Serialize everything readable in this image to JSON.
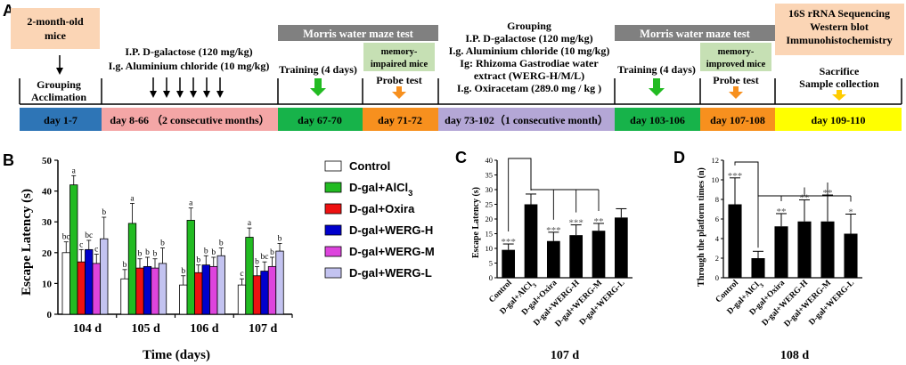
{
  "colors": {
    "orange_box": "#fbd5b5",
    "gray_bar": "#808080",
    "green_box": "#c6e0b4",
    "day_blue": "#2e75b6",
    "day_pink": "#f4a6a6",
    "day_green": "#17b34a",
    "day_orange": "#f7901e",
    "day_purple": "#b4a7d6",
    "day_yellow": "#ffff00",
    "s_control": "#ffffff",
    "s_alcl3": "#22bb22",
    "s_oxira": "#ee1111",
    "s_wergh": "#0000cc",
    "s_wergm": "#dd44dd",
    "s_wergl": "#c3c3f0",
    "arrow_green": "#22bb22",
    "arrow_orange": "#f7901e",
    "arrow_yellow": "#ffcc00"
  },
  "panel_a": {
    "letter": "A",
    "box_mice": {
      "l1": "2-month-old",
      "l2": "mice"
    },
    "grouping1": {
      "l1": "Grouping",
      "l2": "Acclimation"
    },
    "ip1": {
      "l1": "I.P. D-galactose (120 mg/kg)",
      "l2": "I.g. Aluminium chloride (10 mg/kg)"
    },
    "mwm1": "Morris water maze test",
    "training1": "Training (4 days)",
    "mem_impaired": {
      "l1": "memory-",
      "l2": "impaired mice"
    },
    "probe1": "Probe test",
    "grouping2": {
      "l1": "Grouping",
      "l2": "I.P. D-galactose (120 mg/kg)",
      "l3": "I.g. Aluminium chloride (10 mg/kg)",
      "l4": "Ig: Rhizoma Gastrodiae water",
      "l5": "extract (WERG-H/M/L)",
      "l6": "I.g. Oxiracetam (289.0 mg / kg )"
    },
    "mwm2": "Morris water maze test",
    "training2": "Training (4 days)",
    "mem_improved": {
      "l1": "memory-",
      "l2": "improved mice"
    },
    "probe2": "Probe test",
    "final": {
      "l1": "16S rRNA Sequencing",
      "l2": "Western blot",
      "l3": "Immunohistochemistry"
    },
    "sacrifice": {
      "l1": "Sacrifice",
      "l2": "Sample collection"
    },
    "days": [
      "day 1-7",
      "day 8-66 （2 consecutive months）",
      "day 67-70",
      "day 71-72",
      "day 73-102（1 consecutive month）",
      "day 103-106",
      "day 107-108",
      "day 109-110"
    ]
  },
  "chart_data": [
    {
      "panel": "B",
      "type": "bar",
      "ylabel": "Escape Latency (s)",
      "xlabel": "Time (days)",
      "ylim": [
        0,
        50
      ],
      "yticks": [
        0,
        10,
        20,
        30,
        40,
        50
      ],
      "categories": [
        "104 d",
        "105 d",
        "106 d",
        "107 d"
      ],
      "series": [
        {
          "name": "Control",
          "values": [
            20,
            11.5,
            9.5,
            9.5
          ],
          "errors": [
            3.5,
            3,
            3,
            2
          ],
          "letters": [
            "bc",
            "b",
            "b",
            "c"
          ]
        },
        {
          "name": "D-gal+AlCl3",
          "values": [
            42,
            29.5,
            30.5,
            25
          ],
          "errors": [
            3,
            6.5,
            4,
            3
          ],
          "letters": [
            "a",
            "a",
            "a",
            "a"
          ]
        },
        {
          "name": "D-gal+Oxira",
          "values": [
            17,
            15,
            13.5,
            12.5
          ],
          "errors": [
            4,
            3,
            2.5,
            3
          ],
          "letters": [
            "c",
            "b",
            "b",
            "b"
          ]
        },
        {
          "name": "D-gal+WERG-H",
          "values": [
            21,
            15.5,
            16,
            14
          ],
          "errors": [
            3,
            3,
            3,
            3
          ],
          "letters": [
            "bc",
            "b",
            "b",
            "bc"
          ]
        },
        {
          "name": "D-gal+WERG-M",
          "values": [
            16.5,
            15,
            15.5,
            15.5
          ],
          "errors": [
            3,
            3,
            3,
            3
          ],
          "letters": [
            "c",
            "b",
            "b",
            "b"
          ]
        },
        {
          "name": "D-gal+WERG-L",
          "values": [
            24.5,
            16.5,
            19,
            20.5
          ],
          "errors": [
            7,
            5,
            2.5,
            2.5
          ],
          "letters": [
            "b",
            "b",
            "b",
            "b"
          ]
        }
      ],
      "legend": [
        {
          "label": "Control",
          "key": "s_control"
        },
        {
          "label": "D-gal+AlCl3",
          "key": "s_alcl3"
        },
        {
          "label": "D-gal+Oxira",
          "key": "s_oxira"
        },
        {
          "label": "D-gal+WERG-H",
          "key": "s_wergh"
        },
        {
          "label": "D-gal+WERG-M",
          "key": "s_wergm"
        },
        {
          "label": "D-gal+WERG-L",
          "key": "s_wergl"
        }
      ]
    },
    {
      "panel": "C",
      "type": "bar",
      "ylabel": "Escape Latency (s)",
      "xlabel": "107 d",
      "ylim": [
        0,
        40
      ],
      "yticks": [
        0,
        5,
        10,
        15,
        20,
        25,
        30,
        35,
        40
      ],
      "categories": [
        "Control",
        "D-gal+AlCl3",
        "D-gal+Oxira",
        "D-gal+WERG-H",
        "D-gal+WERG-M",
        "D-gal+WERG-L"
      ],
      "values": [
        9.5,
        25,
        12.5,
        14.5,
        16,
        20.5
      ],
      "errors": [
        2,
        3.5,
        3,
        3.5,
        2.5,
        3
      ],
      "stars": [
        "***",
        "",
        "***",
        "***",
        "**",
        ""
      ]
    },
    {
      "panel": "D",
      "type": "bar",
      "ylabel": "Through the platform times (n)",
      "xlabel": "108 d",
      "ylim": [
        0,
        12
      ],
      "yticks": [
        0,
        2,
        4,
        6,
        8,
        10,
        12
      ],
      "categories": [
        "Control",
        "D-gal+AlCl3",
        "D-gal+Oxira",
        "D-gal+WERG-H",
        "D-gal+WERG-M",
        "D-gal+WERG-L"
      ],
      "values": [
        7.5,
        2,
        5.25,
        5.75,
        5.75,
        4.5
      ],
      "errors": [
        2.7,
        0.7,
        1.3,
        2.2,
        2.7,
        2
      ],
      "stars": [
        "***",
        "",
        "**",
        "**",
        "**",
        "*"
      ]
    }
  ]
}
